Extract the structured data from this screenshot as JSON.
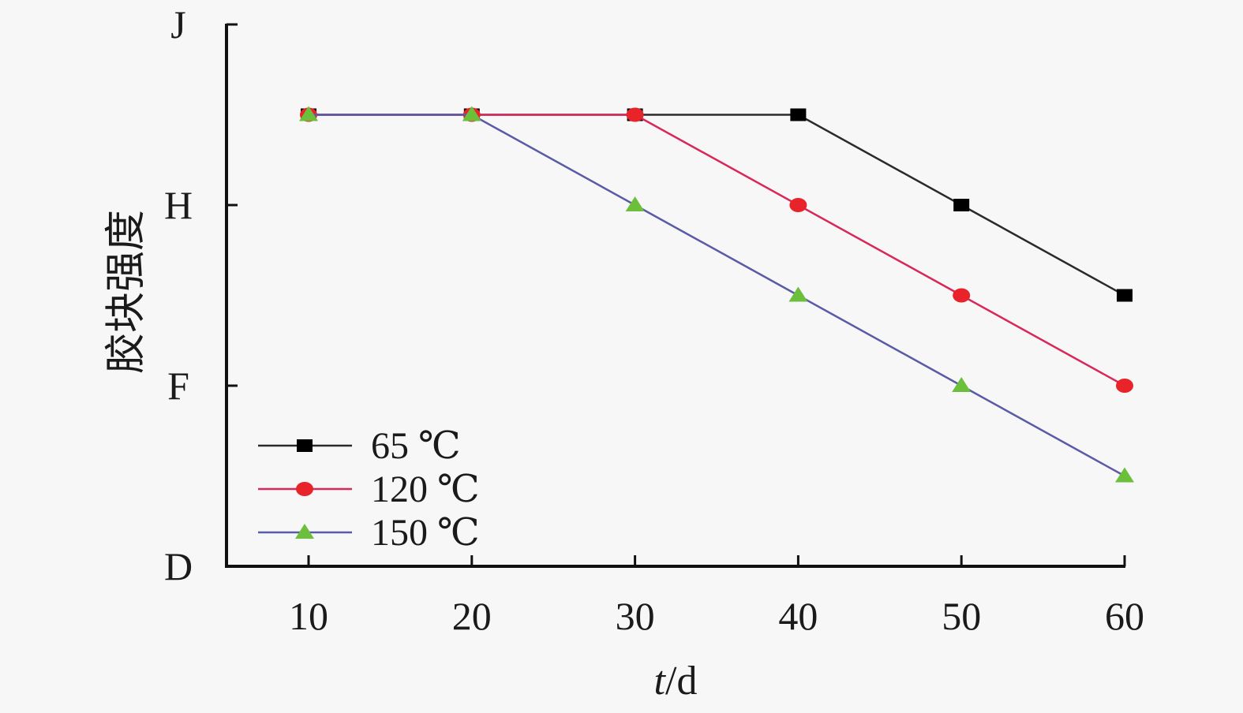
{
  "chart_data": {
    "type": "line",
    "title": "",
    "xlabel_italic": "t",
    "xlabel_rest": "/d",
    "ylabel": "胶块强度",
    "x": [
      10,
      20,
      30,
      40,
      50,
      60
    ],
    "x_ticks": [
      "10",
      "20",
      "30",
      "40",
      "50",
      "60"
    ],
    "y_ticks": [
      "D",
      "F",
      "H",
      "J"
    ],
    "y_scale": "categorical letter grades D–J (unit = 1 grade step; D=0, F=2, H=4, J=6)",
    "ylim": [
      0,
      6
    ],
    "grid": false,
    "legend_position": "bottom-left",
    "series": [
      {
        "name": "65 ℃",
        "color": "#000000",
        "marker": "square",
        "line_color": "#2a2a2a",
        "values": [
          5,
          5,
          5,
          5,
          4,
          3
        ]
      },
      {
        "name": "120 ℃",
        "color": "#e8232a",
        "marker": "circle",
        "line_color": "#d8285a",
        "values": [
          5,
          5,
          5,
          4,
          3,
          2
        ]
      },
      {
        "name": "150 ℃",
        "color": "#6cbf3a",
        "marker": "triangle",
        "line_color": "#5a5aa6",
        "values": [
          5,
          5,
          4,
          3,
          2,
          1
        ]
      }
    ]
  }
}
